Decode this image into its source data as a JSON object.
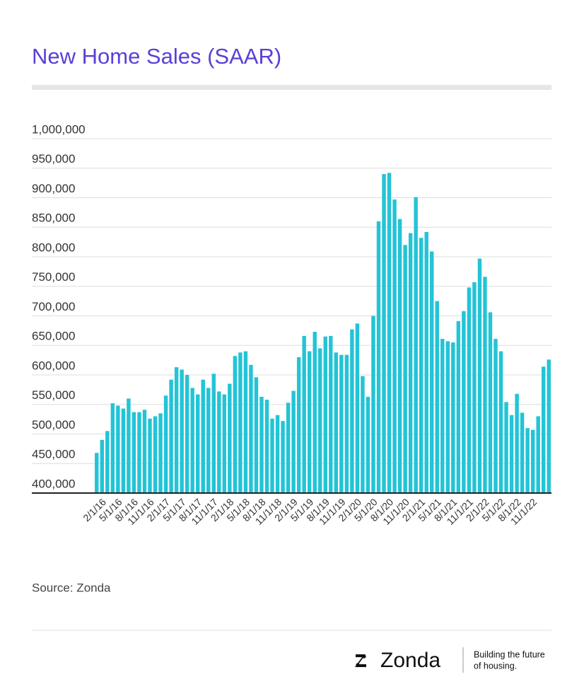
{
  "chart_data": {
    "type": "bar",
    "title": "New Home Sales (SAAR)",
    "source": "Source: Zonda",
    "color": "#22c4d6",
    "grid": true,
    "categories": [
      null,
      "2/1/16",
      null,
      null,
      "5/1/16",
      null,
      null,
      "8/1/16",
      null,
      null,
      "11/1/16",
      null,
      null,
      "2/1/17",
      null,
      null,
      "5/1/17",
      null,
      null,
      "8/1/17",
      null,
      null,
      "11/1/17",
      null,
      null,
      "2/1/18",
      null,
      null,
      "5/1/18",
      null,
      null,
      "8/1/18",
      null,
      null,
      "11/1/18",
      null,
      null,
      "2/1/19",
      null,
      null,
      "5/1/19",
      null,
      null,
      "8/1/19",
      null,
      null,
      "11/1/19",
      null,
      null,
      "2/1/20",
      null,
      null,
      "5/1/20",
      null,
      null,
      "8/1/20",
      null,
      null,
      "11/1/20",
      null,
      null,
      "2/1/21",
      null,
      null,
      "5/1/21",
      null,
      null,
      "8/1/21",
      null,
      null,
      "11/1/21",
      null,
      null,
      "2/1/22",
      null,
      null,
      "5/1/22",
      null,
      null,
      "8/1/22",
      null,
      null,
      "11/1/22",
      null,
      null,
      null
    ],
    "values": [
      468000,
      490000,
      505000,
      552000,
      548000,
      543000,
      560000,
      537000,
      537000,
      541000,
      526000,
      530000,
      535000,
      565000,
      592000,
      613000,
      609000,
      600000,
      578000,
      567000,
      592000,
      578000,
      602000,
      572000,
      567000,
      585000,
      632000,
      638000,
      640000,
      617000,
      596000,
      563000,
      558000,
      526000,
      532000,
      522000,
      553000,
      573000,
      630000,
      666000,
      640000,
      673000,
      645000,
      665000,
      666000,
      638000,
      634000,
      634000,
      677000,
      687000,
      598000,
      563000,
      700000,
      860000,
      940000,
      942000,
      897000,
      864000,
      820000,
      840000,
      901000,
      832000,
      842000,
      809000,
      725000,
      661000,
      657000,
      655000,
      691000,
      708000,
      748000,
      757000,
      797000,
      766000,
      706000,
      661000,
      640000,
      554000,
      532000,
      568000,
      536000,
      510000,
      507000,
      530000,
      614000,
      626000
    ],
    "ylim": [
      400000,
      1000000
    ],
    "yticks": [
      {
        "value": 400000,
        "label": "400,000"
      },
      {
        "value": 450000,
        "label": "450,000"
      },
      {
        "value": 500000,
        "label": "500,000"
      },
      {
        "value": 550000,
        "label": "550,000"
      },
      {
        "value": 600000,
        "label": "600,000"
      },
      {
        "value": 650000,
        "label": "650,000"
      },
      {
        "value": 700000,
        "label": "700,000"
      },
      {
        "value": 750000,
        "label": "750,000"
      },
      {
        "value": 800000,
        "label": "800,000"
      },
      {
        "value": 850000,
        "label": "850,000"
      },
      {
        "value": 900000,
        "label": "900,000"
      },
      {
        "value": 950000,
        "label": "950,000"
      },
      {
        "value": 1000000,
        "label": "1,000,000"
      }
    ]
  },
  "footer": {
    "brand": "Zonda",
    "tagline_1": "Building the future",
    "tagline_2": "of housing."
  }
}
